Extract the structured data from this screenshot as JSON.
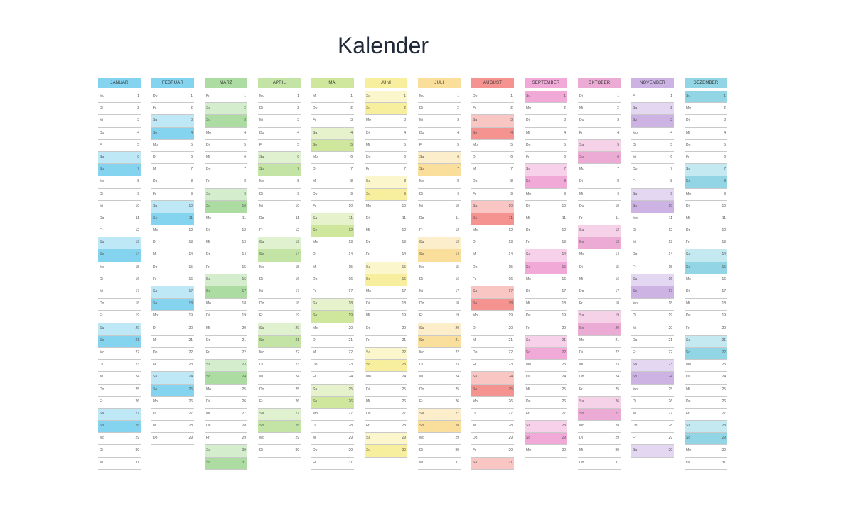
{
  "title": "Kalender",
  "months": [
    {
      "name": "JANUAR",
      "color": "#6ecbec",
      "first_weekday": "Mo",
      "days": 31
    },
    {
      "name": "FEBRUAR",
      "color": "#6ecbec",
      "first_weekday": "Do",
      "days": 29
    },
    {
      "name": "MÄRZ",
      "color": "#9ed690",
      "first_weekday": "Fr",
      "days": 31
    },
    {
      "name": "APRIL",
      "color": "#b8df95",
      "first_weekday": "Mo",
      "days": 30
    },
    {
      "name": "MAI",
      "color": "#c7e38c",
      "first_weekday": "Mi",
      "days": 31
    },
    {
      "name": "JUNI",
      "color": "#f6ec8c",
      "first_weekday": "Sa",
      "days": 30
    },
    {
      "name": "JULI",
      "color": "#f9d98b",
      "first_weekday": "Mo",
      "days": 31
    },
    {
      "name": "AUGUST",
      "color": "#f3807c",
      "first_weekday": "Do",
      "days": 31
    },
    {
      "name": "SEPTEMBER",
      "color": "#ee9ad0",
      "first_weekday": "So",
      "days": 30
    },
    {
      "name": "OKTOBER",
      "color": "#e99ccc",
      "first_weekday": "Di",
      "days": 31
    },
    {
      "name": "NOVEMBER",
      "color": "#c3a6df",
      "first_weekday": "Fr",
      "days": 30
    },
    {
      "name": "DEZEMBER",
      "color": "#7fcfe0",
      "first_weekday": "So",
      "days": 31
    }
  ],
  "weekdays": [
    "Mo",
    "Di",
    "Mi",
    "Do",
    "Fr",
    "Sa",
    "So"
  ]
}
